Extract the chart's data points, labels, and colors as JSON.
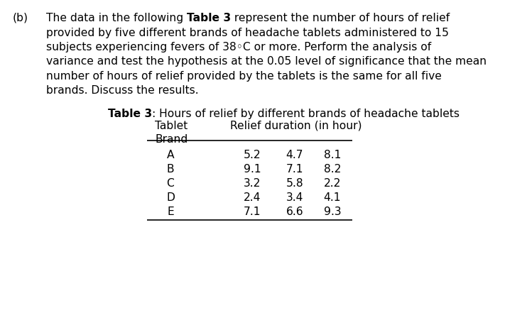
{
  "bg_color": "#ffffff",
  "text_color": "#000000",
  "label_b": "(b)",
  "para_line1_pre": "The data in the following ",
  "para_line1_bold": "Table 3",
  "para_line1_post": " represent the number of hours of relief",
  "para_lines": [
    "provided by five different brands of headache tablets administered to 15",
    "subjects experiencing fevers of 38◦C or more. Perform the analysis of",
    "variance and test the hypothesis at the 0.05 level of significance that the mean",
    "number of hours of relief provided by the tablets is the same for all five",
    "brands. Discuss the results."
  ],
  "table_title_bold": "Table 3",
  "table_title_rest": ": Hours of relief by different brands of headache tablets",
  "col_header1": "Tablet",
  "col_header2": "Relief duration (in hour)",
  "col_header1b": "Brand",
  "brands": [
    "A",
    "B",
    "C",
    "D",
    "E"
  ],
  "data": [
    [
      5.2,
      4.7,
      8.1
    ],
    [
      9.1,
      7.1,
      8.2
    ],
    [
      3.2,
      5.8,
      2.2
    ],
    [
      2.4,
      3.4,
      4.1
    ],
    [
      7.1,
      6.6,
      9.3
    ]
  ],
  "font_size": 11.2,
  "font_size_table": 11.2
}
